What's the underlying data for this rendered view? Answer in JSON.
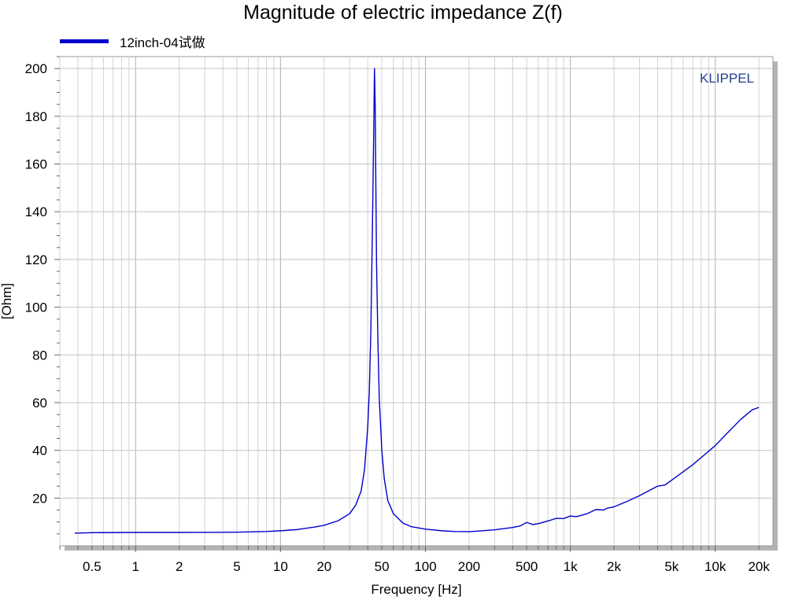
{
  "chart_data": {
    "type": "line",
    "title": "Magnitude of electric impedance Z(f)",
    "xlabel": "Frequency [Hz]",
    "ylabel": "[Ohm]",
    "x_scale": "log",
    "xlim": [
      0.3,
      25000
    ],
    "ylim": [
      0,
      205
    ],
    "grid": true,
    "legend_position": "top-left",
    "watermark": "KLIPPEL",
    "x_ticks": [
      {
        "value": 0.5,
        "label": "0.5"
      },
      {
        "value": 1,
        "label": "1"
      },
      {
        "value": 2,
        "label": "2"
      },
      {
        "value": 5,
        "label": "5"
      },
      {
        "value": 10,
        "label": "10"
      },
      {
        "value": 20,
        "label": "20"
      },
      {
        "value": 50,
        "label": "50"
      },
      {
        "value": 100,
        "label": "100"
      },
      {
        "value": 200,
        "label": "200"
      },
      {
        "value": 500,
        "label": "500"
      },
      {
        "value": 1000,
        "label": "1k"
      },
      {
        "value": 2000,
        "label": "2k"
      },
      {
        "value": 5000,
        "label": "5k"
      },
      {
        "value": 10000,
        "label": "10k"
      },
      {
        "value": 20000,
        "label": "20k"
      }
    ],
    "y_ticks": [
      20,
      40,
      60,
      80,
      100,
      120,
      140,
      160,
      180,
      200
    ],
    "colors": {
      "series": "#0000cc",
      "watermark": "#1f3f8f",
      "grid": "#c8c8c8"
    },
    "series": [
      {
        "name": "12inch-04试做",
        "x": [
          0.38,
          0.5,
          1,
          2,
          5,
          8,
          10,
          13,
          17,
          20,
          25,
          30,
          33,
          36,
          38,
          40,
          41,
          42,
          43,
          44,
          44.5,
          45,
          45.5,
          46,
          47,
          48,
          50,
          52,
          55,
          60,
          70,
          80,
          100,
          130,
          160,
          200,
          300,
          400,
          450,
          500,
          550,
          600,
          700,
          800,
          900,
          1000,
          1100,
          1300,
          1500,
          1700,
          1800,
          2000,
          2500,
          3000,
          4000,
          4500,
          5000,
          6000,
          7000,
          8000,
          10000,
          12000,
          15000,
          18000,
          20000
        ],
        "y": [
          5.3,
          5.5,
          5.6,
          5.6,
          5.7,
          6.0,
          6.3,
          6.8,
          7.8,
          8.6,
          10.5,
          13.5,
          17,
          23,
          32,
          50,
          65,
          90,
          130,
          175,
          200,
          185,
          150,
          118,
          86,
          62,
          40,
          28,
          19,
          13.5,
          9.5,
          8.0,
          7.0,
          6.3,
          6.0,
          5.9,
          6.7,
          7.7,
          8.3,
          9.8,
          8.9,
          9.3,
          10.4,
          11.5,
          11.4,
          12.5,
          12.2,
          13.4,
          15.2,
          15.0,
          15.8,
          16.3,
          18.8,
          21.0,
          25.0,
          25.5,
          27.5,
          31.0,
          34.0,
          37.0,
          42.0,
          47.0,
          53.0,
          57.0,
          58.0
        ]
      }
    ]
  }
}
